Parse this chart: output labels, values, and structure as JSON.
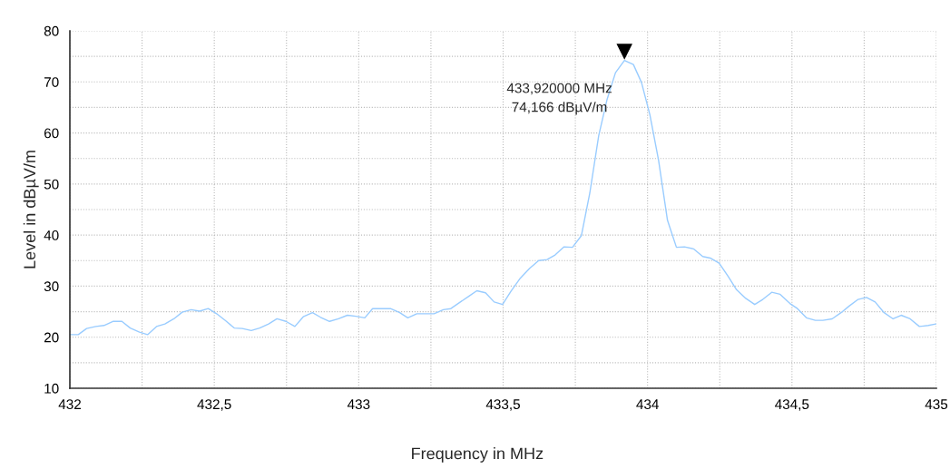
{
  "chart_data": {
    "type": "line",
    "xlabel": "Frequency in MHz",
    "ylabel": "Level in dBµV/m",
    "x": [
      432.0,
      432.029,
      432.058,
      432.09,
      432.118,
      432.149,
      432.18,
      432.209,
      432.241,
      432.269,
      432.3,
      432.329,
      432.36,
      432.389,
      432.42,
      432.449,
      432.479,
      432.508,
      432.54,
      432.569,
      432.597,
      432.628,
      432.657,
      432.688,
      432.717,
      432.748,
      432.779,
      432.808,
      432.84,
      432.868,
      432.899,
      432.93,
      432.961,
      432.99,
      433.021,
      433.048,
      433.079,
      433.11,
      433.142,
      433.17,
      433.201,
      433.23,
      433.261,
      433.293,
      433.319,
      433.352,
      433.381,
      433.409,
      433.439,
      433.469,
      433.498,
      433.527,
      433.56,
      433.592,
      433.623,
      433.652,
      433.68,
      433.711,
      433.74,
      433.771,
      433.8,
      433.831,
      433.86,
      433.889,
      433.92,
      433.951,
      433.979,
      434.008,
      434.038,
      434.069,
      434.1,
      434.128,
      434.159,
      434.191,
      434.217,
      434.248,
      434.279,
      434.308,
      434.34,
      434.371,
      434.399,
      434.43,
      434.459,
      434.493,
      434.519,
      434.55,
      434.581,
      434.607,
      434.639,
      434.67,
      434.698,
      434.729,
      434.758,
      434.788,
      434.819,
      434.85,
      434.878,
      434.909,
      434.941,
      434.972,
      434.998
    ],
    "series": [
      {
        "color": "#99ccff",
        "values": [
          20.5,
          20.5,
          21.7,
          22.1,
          22.3,
          23.1,
          23.1,
          21.8,
          21.0,
          20.5,
          22.1,
          22.6,
          23.6,
          24.9,
          25.4,
          25.1,
          25.6,
          24.6,
          23.2,
          21.8,
          21.7,
          21.3,
          21.8,
          22.6,
          23.6,
          23.1,
          22.1,
          24.0,
          24.8,
          23.9,
          23.1,
          23.6,
          24.3,
          24.1,
          23.8,
          25.6,
          25.6,
          25.6,
          24.8,
          23.8,
          24.6,
          24.6,
          24.6,
          25.4,
          25.6,
          26.9,
          28.0,
          29.1,
          28.7,
          26.9,
          26.4,
          29.0,
          31.6,
          33.5,
          35.0,
          35.2,
          36.1,
          37.7,
          37.6,
          39.9,
          48.2,
          59.5,
          66.6,
          71.8,
          74.2,
          73.4,
          69.9,
          63.6,
          54.7,
          42.9,
          37.6,
          37.7,
          37.3,
          35.8,
          35.5,
          34.5,
          31.9,
          29.3,
          27.6,
          26.4,
          27.4,
          28.8,
          28.4,
          26.6,
          25.6,
          23.8,
          23.3,
          23.3,
          23.6,
          24.8,
          26.1,
          27.4,
          27.8,
          26.9,
          24.8,
          23.6,
          24.3,
          23.6,
          22.1,
          22.3,
          22.6
        ]
      }
    ],
    "xlim": [
      432,
      435
    ],
    "ylim": [
      10,
      80
    ],
    "xticks": [
      432,
      {
        "value": 432.25,
        "label": null
      },
      {
        "value": 432.5,
        "label": "432,5"
      },
      {
        "value": 432.75,
        "label": null
      },
      433,
      {
        "value": 433.25,
        "label": null
      },
      {
        "value": 433.5,
        "label": "433,5"
      },
      {
        "value": 433.75,
        "label": null
      },
      434,
      {
        "value": 434.25,
        "label": null
      },
      {
        "value": 434.5,
        "label": "434,5"
      },
      {
        "value": 434.75,
        "label": null
      },
      435
    ],
    "yticks": [
      10,
      {
        "value": 15,
        "label": null
      },
      20,
      {
        "value": 25,
        "label": null
      },
      30,
      {
        "value": 35,
        "label": null
      },
      40,
      {
        "value": 45,
        "label": null
      },
      50,
      {
        "value": 55,
        "label": null
      },
      60,
      {
        "value": 65,
        "label": null
      },
      70,
      {
        "value": 75,
        "label": null
      },
      80
    ],
    "grid": true,
    "legend": false,
    "marker": "none",
    "line_style": "solid",
    "annotations": [
      "433,920000 MHz\n74,166 dBµV/m"
    ]
  }
}
